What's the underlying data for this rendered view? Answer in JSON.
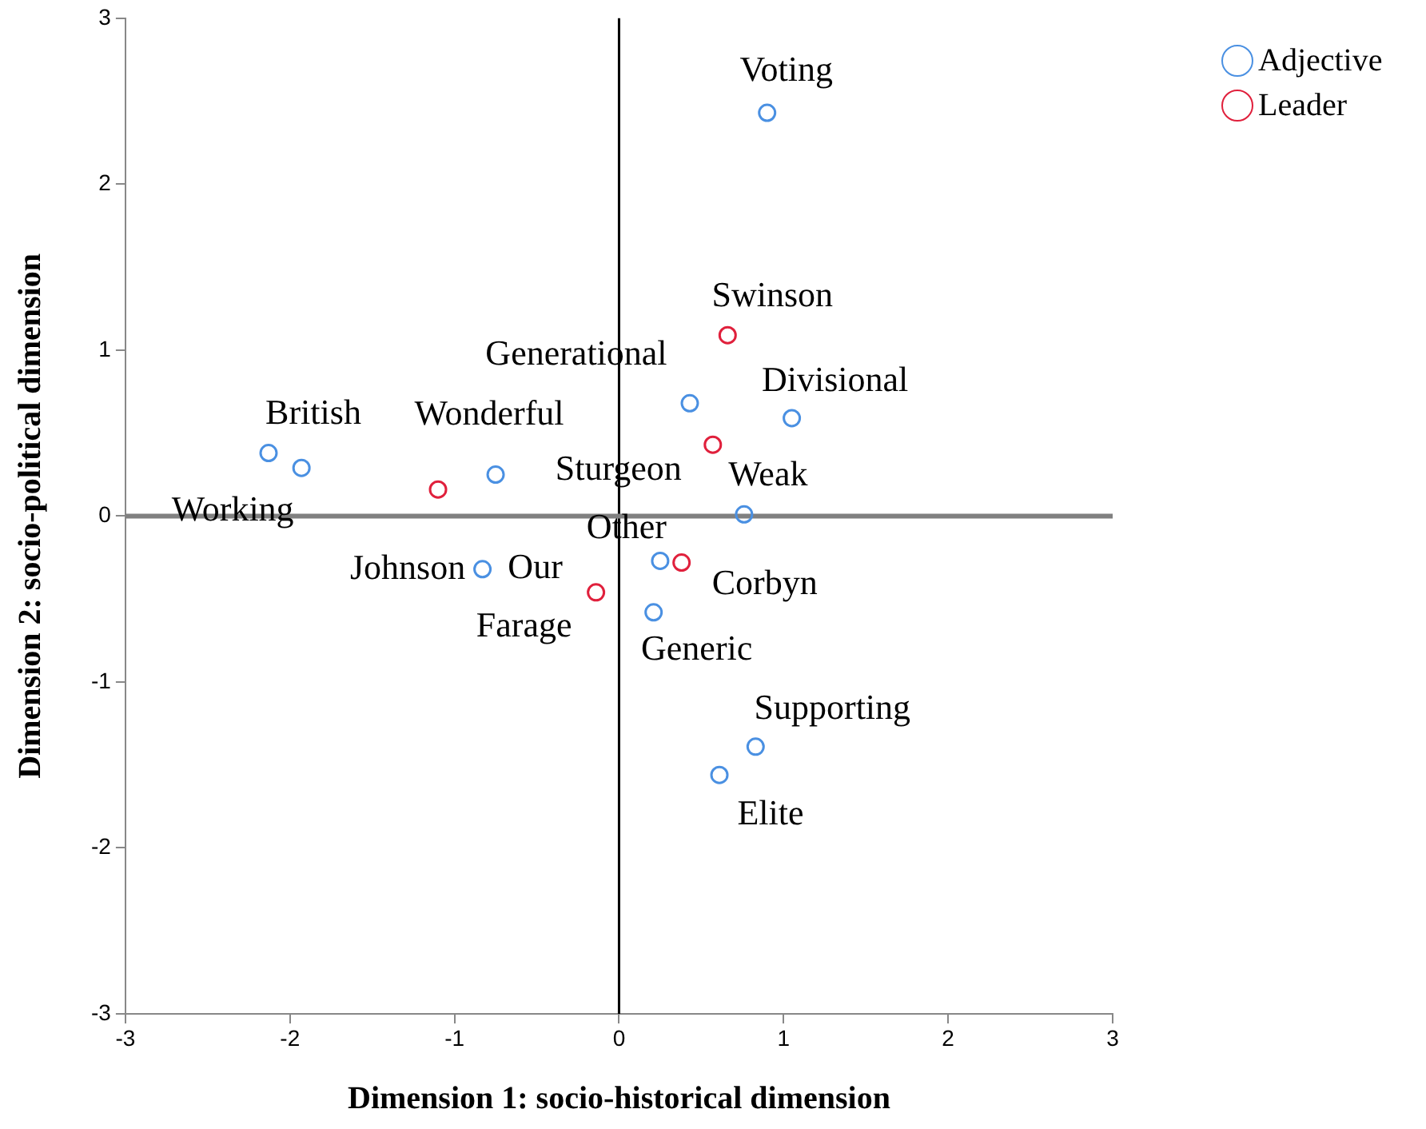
{
  "chart_data": {
    "type": "scatter",
    "xlabel": "Dimension 1: socio-historical dimension",
    "ylabel": "Dimension 2: socio-political dimension",
    "series": [
      {
        "name": "Adjective",
        "color": "#4a90e2",
        "x": [
          0.9,
          -2.13,
          -1.93,
          -0.75,
          0.43,
          1.05,
          0.76,
          -0.83,
          0.25,
          0.21,
          0.83,
          0.61
        ],
        "values": [
          2.43,
          0.38,
          0.29,
          0.25,
          0.68,
          0.59,
          0.01,
          -0.32,
          -0.27,
          -0.58,
          -1.39,
          -1.56
        ]
      },
      {
        "name": "Leader",
        "color": "#e0203c",
        "x": [
          0.66,
          0.57,
          -1.1,
          -0.14,
          0.38
        ],
        "values": [
          1.09,
          0.43,
          0.16,
          -0.46,
          -0.28
        ]
      }
    ],
    "annotations": [
      {
        "text": "Voting",
        "x": 0.9,
        "y": 2.43
      },
      {
        "text": "British",
        "x": -2.13,
        "y": 0.38
      },
      {
        "text": "Working",
        "x": -1.93,
        "y": 0.29
      },
      {
        "text": "Wonderful",
        "x": -0.75,
        "y": 0.25
      },
      {
        "text": "Generational",
        "x": 0.43,
        "y": 0.68
      },
      {
        "text": "Divisional",
        "x": 1.05,
        "y": 0.59
      },
      {
        "text": "Weak",
        "x": 0.76,
        "y": 0.01
      },
      {
        "text": "Our",
        "x": -0.83,
        "y": -0.32
      },
      {
        "text": "Other",
        "x": 0.25,
        "y": -0.27
      },
      {
        "text": "Generic",
        "x": 0.21,
        "y": -0.58
      },
      {
        "text": "Supporting",
        "x": 0.83,
        "y": -1.39
      },
      {
        "text": "Elite",
        "x": 0.61,
        "y": -1.56
      },
      {
        "text": "Swinson",
        "x": 0.66,
        "y": 1.09
      },
      {
        "text": "Sturgeon",
        "x": 0.57,
        "y": 0.43
      },
      {
        "text": "Johnson",
        "x": -1.1,
        "y": 0.16
      },
      {
        "text": "Farage",
        "x": -0.14,
        "y": -0.46
      },
      {
        "text": "Corbyn",
        "x": 0.38,
        "y": -0.28
      }
    ],
    "ref_lines": [
      {
        "axis": "x",
        "value": 0,
        "color": "#000000"
      },
      {
        "axis": "y",
        "value": 0,
        "color": "#808080"
      }
    ],
    "xlim": [
      -3,
      3
    ],
    "xticks": [
      -3,
      -2,
      -1,
      0,
      1,
      2,
      3
    ],
    "ylim": [
      -3,
      3
    ],
    "yticks": [
      -3,
      -2,
      -1,
      0,
      1,
      2,
      3
    ],
    "grid": false,
    "legend": "top right",
    "marker": "circle"
  }
}
